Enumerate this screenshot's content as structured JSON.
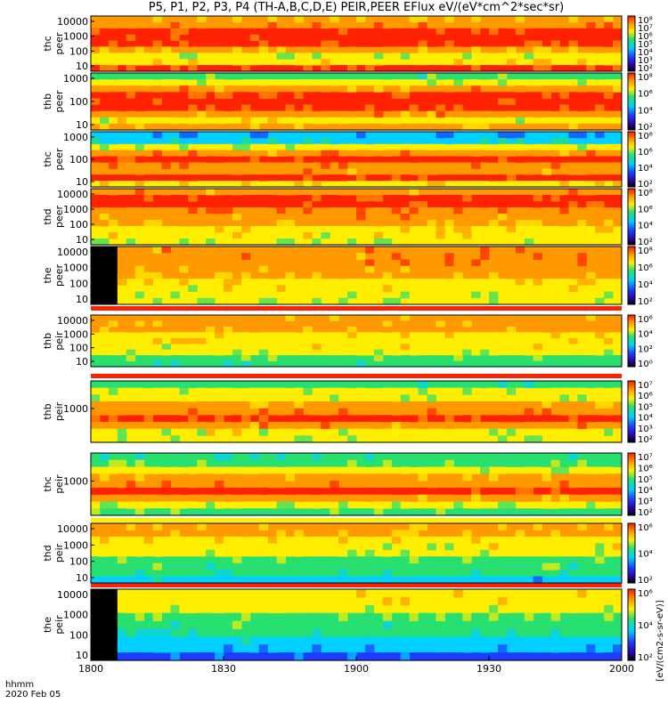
{
  "title": "P5, P1, P2, P3, P4 (TH-A,B,C,D,E) PEIR,PEER EFlux eV/(eV*cm^2*sec*sr)",
  "time_axis": {
    "label_line1": "hhmm",
    "label_line2": "2020 Feb 05",
    "ticks": [
      "1800",
      "1830",
      "1900",
      "1930",
      "2000"
    ],
    "tick_minutes": [
      0,
      30,
      60,
      90,
      120
    ]
  },
  "colorbar_units": "[eV/(cm2-s-sr-eV)]",
  "colors": {
    "black": "#000000",
    "blue": "#1e3cff",
    "cyan": "#00d0ff",
    "green": "#28e070",
    "yellow": "#ffee00",
    "orange": "#ff9900",
    "red": "#ff2200"
  },
  "chart_data": {
    "type": "heatmap",
    "x_range_minutes": [
      0,
      120
    ],
    "panels": [
      {
        "name": "thc peer",
        "ylabel": [
          "thc",
          "peer"
        ],
        "y_ticks": [
          "10000",
          "1000",
          "100",
          "10"
        ],
        "cb_ticks": [
          "10⁸",
          "10⁷",
          "10⁶",
          "10⁵",
          "10⁴",
          "10³",
          "10²"
        ],
        "profile": [
          0.72,
          0.85,
          0.92,
          0.95,
          0.9,
          0.75,
          0.55,
          0.7,
          0.88
        ]
      },
      {
        "name": "thb peer",
        "ylabel": [
          "thb",
          "peer"
        ],
        "y_ticks": [
          "1000",
          "100",
          "10"
        ],
        "cb_ticks": [
          "10⁸",
          "10⁶",
          "10⁴",
          "10²"
        ],
        "profile": [
          0.45,
          0.6,
          0.78,
          0.88,
          0.93,
          0.9,
          0.8,
          0.65,
          0.75
        ]
      },
      {
        "name": "thc peer",
        "ylabel": [
          "thc",
          "peer"
        ],
        "y_ticks": [
          "1000",
          "100",
          "10"
        ],
        "cb_ticks": [
          "10⁸",
          "10⁶",
          "10⁴",
          "10²"
        ],
        "profile": [
          0.2,
          0.35,
          0.6,
          0.82,
          0.92,
          0.85,
          0.78,
          0.9,
          0.7
        ]
      },
      {
        "name": "thd peer",
        "ylabel": [
          "thd",
          "peer"
        ],
        "y_ticks": [
          "10000",
          "1000",
          "100",
          "10"
        ],
        "cb_ticks": [
          "10⁸",
          "10⁶",
          "10⁴",
          "10²"
        ],
        "profile": [
          0.8,
          0.88,
          0.9,
          0.86,
          0.8,
          0.75,
          0.7,
          0.65,
          0.55
        ]
      },
      {
        "name": "the peer",
        "ylabel": [
          "the",
          "peer"
        ],
        "y_ticks": [
          "10000",
          "1000",
          "100",
          "10"
        ],
        "cb_ticks": [
          "10⁸",
          "10⁶",
          "10⁴",
          "10²"
        ],
        "profile": [
          0.8,
          0.82,
          0.8,
          0.76,
          0.72,
          0.68,
          0.64,
          0.6,
          0.55
        ],
        "gap_end_minutes": 6
      },
      {
        "name": "thb peir",
        "ylabel": [
          "thb",
          "peir"
        ],
        "y_ticks": [
          "10000",
          "1000",
          "100",
          "10"
        ],
        "cb_ticks": [
          "10⁶",
          "10⁴",
          "10²",
          "10⁰"
        ],
        "profile": [
          0.78,
          0.75,
          0.72,
          0.7,
          0.68,
          0.64,
          0.58,
          0.52,
          0.45
        ]
      },
      {
        "name": "thb peir",
        "ylabel": [
          "thb",
          "peir"
        ],
        "y_ticks": [
          "1000"
        ],
        "cb_ticks": [
          "10⁷",
          "10⁶",
          "10⁵",
          "10⁴",
          "10³",
          "10²"
        ],
        "profile": [
          0.45,
          0.55,
          0.6,
          0.75,
          0.85,
          0.92,
          0.8,
          0.62,
          0.55
        ]
      },
      {
        "name": "thc peir",
        "ylabel": [
          "thc",
          "peir"
        ],
        "y_ticks": [
          "1000"
        ],
        "cb_ticks": [
          "10⁷",
          "10⁶",
          "10⁵",
          "10⁴",
          "10³",
          "10²"
        ],
        "profile": [
          0.42,
          0.52,
          0.58,
          0.72,
          0.84,
          0.92,
          0.78,
          0.6,
          0.5
        ]
      },
      {
        "name": "thd peir",
        "ylabel": [
          "thd",
          "peir"
        ],
        "y_ticks": [
          "10000",
          "1000",
          "100",
          "10"
        ],
        "cb_ticks": [
          "10⁶",
          "10⁴",
          "10²"
        ],
        "profile": [
          0.75,
          0.72,
          0.68,
          0.62,
          0.58,
          0.52,
          0.45,
          0.38,
          0.3
        ]
      },
      {
        "name": "the peir",
        "ylabel": [
          "the",
          "peir"
        ],
        "y_ticks": [
          "10000",
          "1000",
          "100",
          "10"
        ],
        "cb_ticks": [
          "10⁶",
          "10⁴",
          "10²"
        ],
        "profile": [
          0.7,
          0.66,
          0.6,
          0.52,
          0.45,
          0.38,
          0.3,
          0.22,
          0.15
        ],
        "gap_end_minutes": 6
      }
    ]
  }
}
